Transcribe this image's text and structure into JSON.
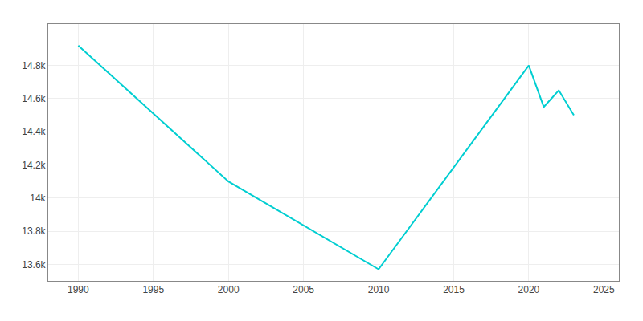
{
  "chart_data": {
    "type": "line",
    "x": [
      1990,
      2000,
      2010,
      2020,
      2021,
      2022,
      2023
    ],
    "values": [
      14920,
      14100,
      13570,
      14800,
      14550,
      14650,
      14500
    ],
    "color": "#00CED1",
    "xlim": [
      1988,
      2026
    ],
    "ylim": [
      13500,
      15050
    ],
    "xticks": [
      1990,
      1995,
      2000,
      2005,
      2010,
      2015,
      2020,
      2025
    ],
    "yticks": [
      {
        "value": 13600,
        "label": "13.6k"
      },
      {
        "value": 13800,
        "label": "13.8k"
      },
      {
        "value": 14000,
        "label": "14k"
      },
      {
        "value": 14200,
        "label": "14.2k"
      },
      {
        "value": 14400,
        "label": "14.4k"
      },
      {
        "value": 14600,
        "label": "14.6k"
      },
      {
        "value": 14800,
        "label": "14.8k"
      }
    ],
    "grid": true
  }
}
